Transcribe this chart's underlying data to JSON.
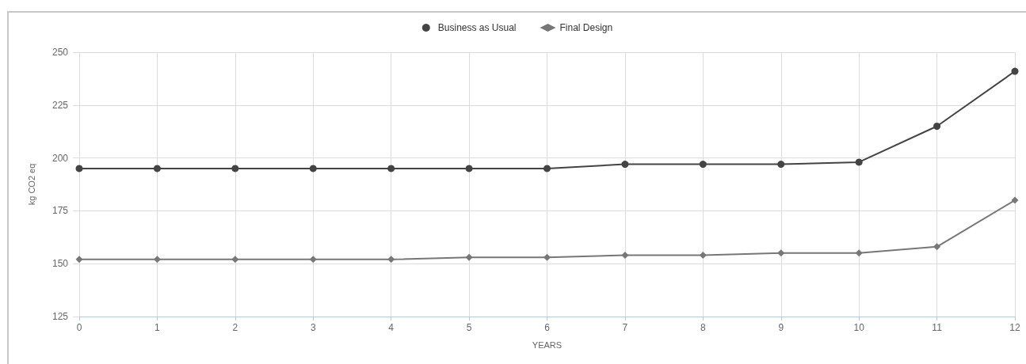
{
  "chart_data": {
    "type": "line",
    "xlabel": "YEARS",
    "ylabel": "kg CO2 eq",
    "categories": [
      "0",
      "1",
      "2",
      "3",
      "4",
      "5",
      "6",
      "7",
      "8",
      "9",
      "10",
      "11",
      "12"
    ],
    "series": [
      {
        "name": "Business as Usual",
        "color": "#444444",
        "marker": "circle",
        "values": [
          195,
          195,
          195,
          195,
          195,
          195,
          195,
          197,
          197,
          197,
          198,
          215,
          241
        ]
      },
      {
        "name": "Final Design",
        "color": "#777777",
        "marker": "diamond",
        "values": [
          152,
          152,
          152,
          152,
          152,
          153,
          153,
          154,
          154,
          155,
          155,
          158,
          180
        ]
      }
    ],
    "ylim": [
      125,
      250
    ],
    "yticks": [
      125,
      150,
      175,
      200,
      225,
      250
    ],
    "grid": true,
    "legend": "top",
    "line_style": "solid"
  }
}
